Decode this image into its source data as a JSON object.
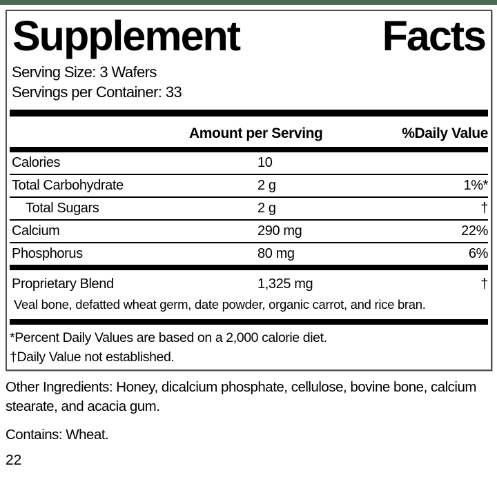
{
  "theme": {
    "accent_green": "#4a6b52",
    "rule_black": "#000000",
    "border_gray": "#4f4f4f"
  },
  "label": {
    "title_left": "Supplement",
    "title_right": "Facts",
    "serving_size": "Serving Size: 3 Wafers",
    "servings_per_container": "Servings per Container: 33",
    "columns": {
      "amount": "Amount per Serving",
      "daily_value": "%Daily Value"
    },
    "rows": [
      {
        "name": "Calories",
        "amount": "10",
        "dv": ""
      },
      {
        "name": "Total Carbohydrate",
        "amount": "2 g",
        "dv": "1%*"
      },
      {
        "name": "Total Sugars",
        "amount": "2 g",
        "dv": "†"
      },
      {
        "name": "Calcium",
        "amount": "290 mg",
        "dv": "22%"
      },
      {
        "name": "Phosphorus",
        "amount": "80 mg",
        "dv": "6%"
      }
    ],
    "blend": {
      "name": "Proprietary Blend",
      "amount": "1,325 mg",
      "dv": "†",
      "description": "Veal bone, defatted wheat germ, date powder, organic carrot, and rice bran."
    },
    "footnotes": [
      "*Percent Daily Values are based on a 2,000 calorie diet.",
      "†Daily Value not established."
    ]
  },
  "below": {
    "other_ingredients": "Other Ingredients: Honey, dicalcium phosphate, cellulose, bovine bone, calcium stearate, and acacia gum.",
    "contains": "Contains: Wheat.",
    "page_number": "22"
  }
}
